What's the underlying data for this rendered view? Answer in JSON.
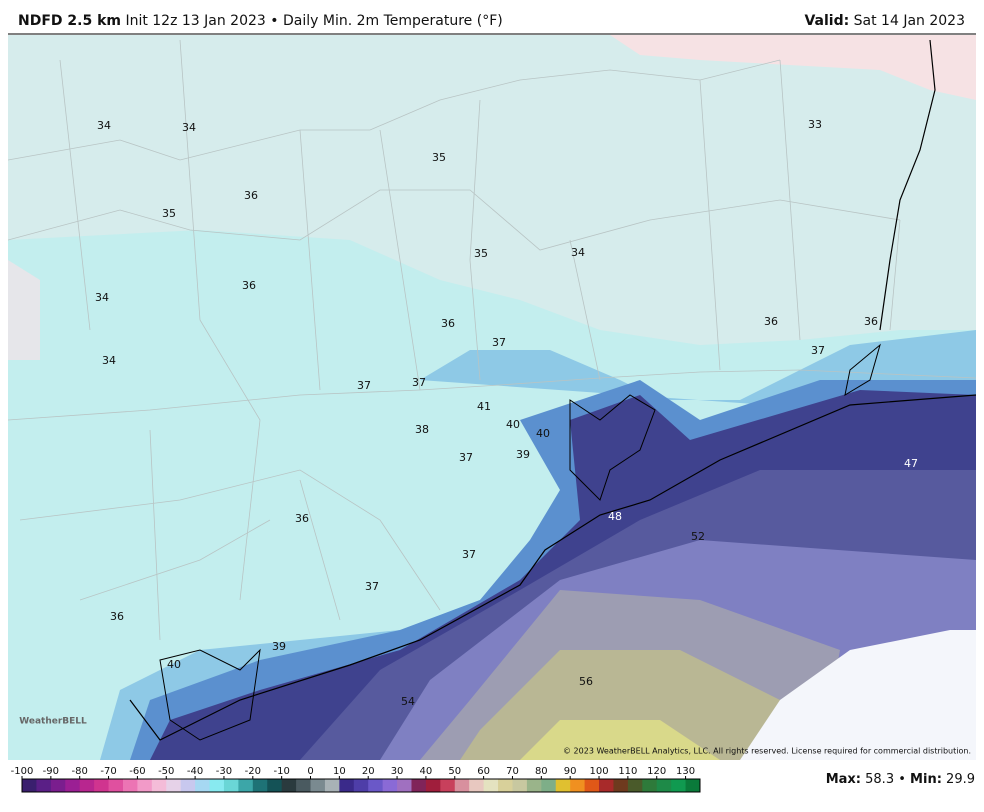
{
  "header": {
    "title": "NDFD 2.5 km",
    "init": "Init 12z 13 Jan 2023",
    "separator": "•",
    "product": "Daily Min. 2m Temperature (°F)",
    "valid_label": "Valid:",
    "valid_date": "Sat 14 Jan 2023"
  },
  "map": {
    "stations": [
      34,
      34,
      35,
      33,
      36,
      35,
      35,
      34,
      34,
      36,
      36,
      37,
      36,
      36,
      37,
      34,
      37,
      37,
      41,
      40,
      40,
      38,
      37,
      39,
      47,
      36,
      48,
      52,
      37,
      37,
      36,
      39,
      40,
      56,
      54
    ],
    "logo": "WeatherBELL",
    "copyright": "© 2023 WeatherBELL Analytics, LLC. All rights reserved. License required for commercial distribution."
  },
  "colorbar": {
    "ticks": [
      -100,
      -90,
      -80,
      -70,
      -60,
      -50,
      -40,
      -30,
      -20,
      -10,
      0,
      10,
      20,
      30,
      40,
      50,
      60,
      70,
      80,
      90,
      100,
      110,
      120,
      130
    ]
  },
  "stats": {
    "max_label": "Max:",
    "max": 58.3,
    "min_label": "Min:",
    "min": 29.9
  }
}
